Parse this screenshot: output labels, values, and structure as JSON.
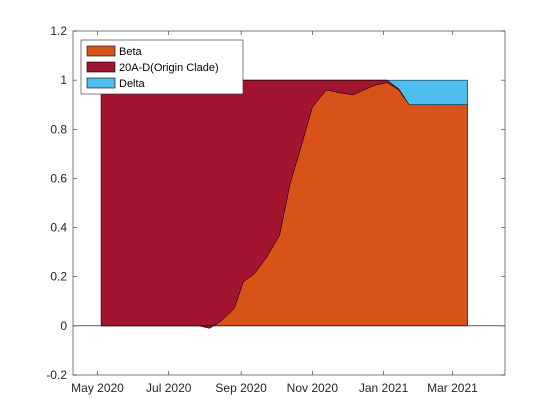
{
  "chart_data": {
    "type": "area",
    "stacked": true,
    "title": "",
    "xlabel": "",
    "ylabel": "",
    "x_unit": "date",
    "xlim": [
      "2020-04-10",
      "2021-04-15"
    ],
    "ylim": [
      -0.2,
      1.2
    ],
    "grid": false,
    "legend_position": "top-left",
    "x_ticks": [
      "May 2020",
      "Jul 2020",
      "Sep 2020",
      "Nov 2020",
      "Jan 2021",
      "Mar 2021"
    ],
    "x_tick_dates": [
      "2020-05-01",
      "2020-07-01",
      "2020-09-01",
      "2020-11-01",
      "2021-01-01",
      "2021-03-01"
    ],
    "y_ticks": [
      "-0.2",
      "0",
      "0.2",
      "0.4",
      "0.6",
      "0.8",
      "1",
      "1.2"
    ],
    "y_tick_values": [
      -0.2,
      0,
      0.2,
      0.4,
      0.6,
      0.8,
      1,
      1.2
    ],
    "x": [
      "2020-05-04",
      "2020-07-27",
      "2020-08-05",
      "2020-08-15",
      "2020-08-26",
      "2020-09-03",
      "2020-09-12",
      "2020-09-23",
      "2020-10-04",
      "2020-10-13",
      "2020-10-23",
      "2020-11-01",
      "2020-11-13",
      "2020-11-23",
      "2020-12-06",
      "2020-12-15",
      "2020-12-25",
      "2021-01-04",
      "2021-01-14",
      "2021-01-23",
      "2021-02-02",
      "2021-02-11",
      "2021-02-21",
      "2021-03-02",
      "2021-03-14"
    ],
    "series": [
      {
        "name": "Beta",
        "color": "#D95319",
        "values": [
          0,
          0,
          -0.01,
          0.02,
          0.07,
          0.18,
          0.21,
          0.28,
          0.37,
          0.58,
          0.74,
          0.89,
          0.96,
          0.95,
          0.94,
          0.96,
          0.98,
          0.99,
          0.96,
          0.9,
          0.9,
          0.9,
          0.9,
          0.9,
          0.9
        ]
      },
      {
        "name": "20A-D(Origin Clade)",
        "color": "#A2142F",
        "values": [
          1,
          1,
          1.01,
          0.98,
          0.93,
          0.82,
          0.79,
          0.72,
          0.63,
          0.42,
          0.26,
          0.11,
          0.04,
          0.05,
          0.06,
          0.04,
          0.02,
          0.01,
          0.005,
          0,
          0,
          0,
          0,
          0,
          0
        ]
      },
      {
        "name": "Delta",
        "color": "#4DBEEE",
        "values": [
          0,
          0,
          0,
          0,
          0,
          0,
          0,
          0,
          0,
          0,
          0,
          0,
          0,
          0,
          0,
          0,
          0,
          0,
          0.035,
          0.1,
          0.1,
          0.1,
          0.1,
          0.1,
          0.1
        ]
      }
    ]
  }
}
